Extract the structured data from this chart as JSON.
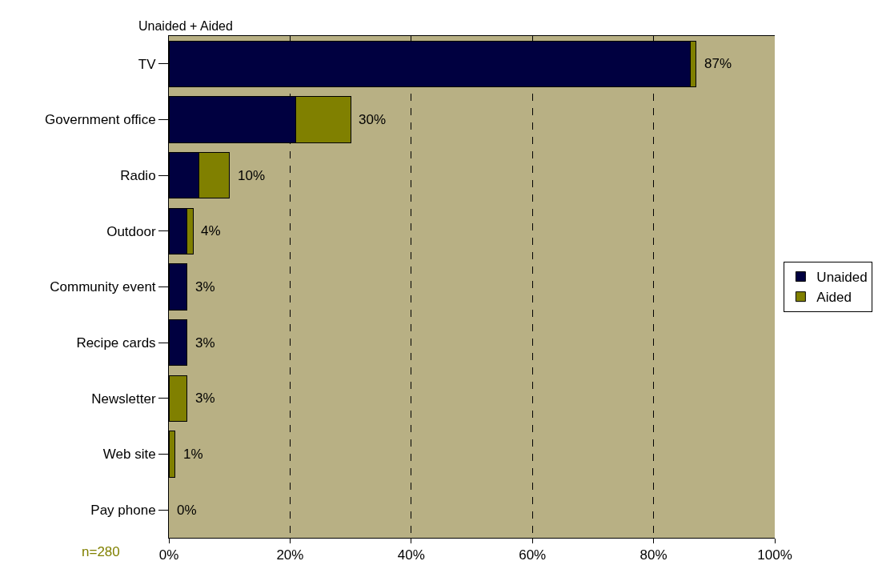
{
  "chart_data": {
    "type": "bar",
    "orientation": "horizontal",
    "stacked": true,
    "subtitle": "Unaided + Aided",
    "categories": [
      "TV",
      "Government office",
      "Radio",
      "Outdoor",
      "Community event",
      "Recipe cards",
      "Newsletter",
      "Web site",
      "Pay phone"
    ],
    "series": [
      {
        "name": "Unaided",
        "color": "#000040",
        "values": [
          86,
          21,
          5,
          3,
          3,
          3,
          0,
          0,
          0
        ]
      },
      {
        "name": "Aided",
        "color": "#808000",
        "values": [
          1,
          9,
          5,
          1,
          0,
          0,
          3,
          1,
          0
        ]
      }
    ],
    "totals": [
      "87%",
      "30%",
      "10%",
      "4%",
      "3%",
      "3%",
      "3%",
      "1%",
      "0%"
    ],
    "xlim": [
      0,
      100
    ],
    "xticks": [
      {
        "value": 0,
        "label": "0%"
      },
      {
        "value": 20,
        "label": "20%"
      },
      {
        "value": 40,
        "label": "40%"
      },
      {
        "value": 60,
        "label": "60%"
      },
      {
        "value": 80,
        "label": "80%"
      },
      {
        "value": 100,
        "label": "100%"
      }
    ],
    "grid": "x",
    "legend": "right",
    "line_style": "dashed",
    "annotations": [
      "n=280"
    ]
  }
}
